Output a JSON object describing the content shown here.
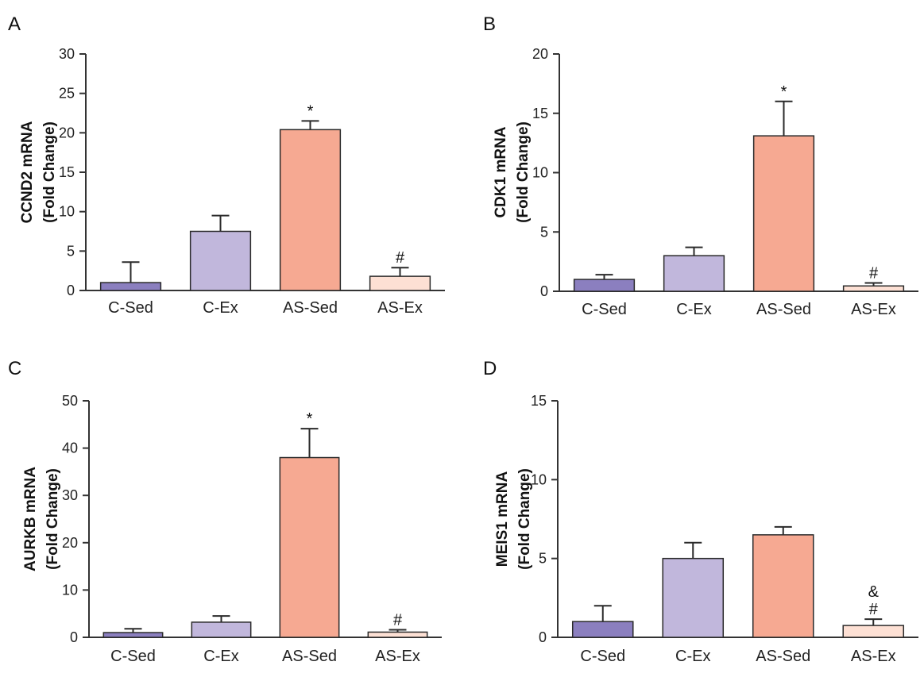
{
  "chart_data": [
    {
      "panel": "A",
      "type": "bar",
      "categories": [
        "C-Sed",
        "C-Ex",
        "AS-Sed",
        "AS-Ex"
      ],
      "values": [
        1.0,
        7.5,
        20.4,
        1.8
      ],
      "errors": [
        2.6,
        2.0,
        1.1,
        1.1
      ],
      "annotations": [
        "",
        "",
        "*",
        "#"
      ],
      "ylabel_lines": [
        "CCND2 mRNA",
        "(Fold Change)"
      ],
      "ylim": [
        0,
        30
      ],
      "yticks": [
        0,
        5,
        10,
        15,
        20,
        25,
        30
      ],
      "grid": false
    },
    {
      "panel": "B",
      "type": "bar",
      "categories": [
        "C-Sed",
        "C-Ex",
        "AS-Sed",
        "AS-Ex"
      ],
      "values": [
        1.0,
        3.0,
        13.1,
        0.45
      ],
      "errors": [
        0.4,
        0.7,
        2.9,
        0.25
      ],
      "annotations": [
        "",
        "",
        "*",
        "#"
      ],
      "ylabel_lines": [
        "CDK1 mRNA",
        "(Fold Change)"
      ],
      "ylim": [
        0,
        20
      ],
      "yticks": [
        0,
        5,
        10,
        15,
        20
      ],
      "grid": false
    },
    {
      "panel": "C",
      "type": "bar",
      "categories": [
        "C-Sed",
        "C-Ex",
        "AS-Sed",
        "AS-Ex"
      ],
      "values": [
        1.0,
        3.2,
        38.0,
        1.1
      ],
      "errors": [
        0.8,
        1.3,
        6.1,
        0.5
      ],
      "annotations": [
        "",
        "",
        "*",
        "#"
      ],
      "ylabel_lines": [
        "AURKB mRNA",
        "(Fold Change)"
      ],
      "ylim": [
        0,
        50
      ],
      "yticks": [
        0,
        10,
        20,
        30,
        40,
        50
      ],
      "grid": false
    },
    {
      "panel": "D",
      "type": "bar",
      "categories": [
        "C-Sed",
        "C-Ex",
        "AS-Sed",
        "AS-Ex"
      ],
      "values": [
        1.0,
        5.0,
        6.5,
        0.75
      ],
      "errors": [
        1.0,
        1.0,
        0.5,
        0.4
      ],
      "annotations": [
        "",
        "",
        "",
        "&\n#"
      ],
      "ylabel_lines": [
        "MEIS1 mRNA",
        "(Fold Change)"
      ],
      "ylim": [
        0,
        15
      ],
      "yticks": [
        0,
        5,
        10,
        15
      ],
      "grid": false
    }
  ],
  "colors": {
    "bar_fills": [
      "#8b7fbf",
      "#c1b7dc",
      "#f6a992",
      "#fde0d4"
    ],
    "bar_stroke": "#2a2a2a",
    "axis": "#333333"
  }
}
